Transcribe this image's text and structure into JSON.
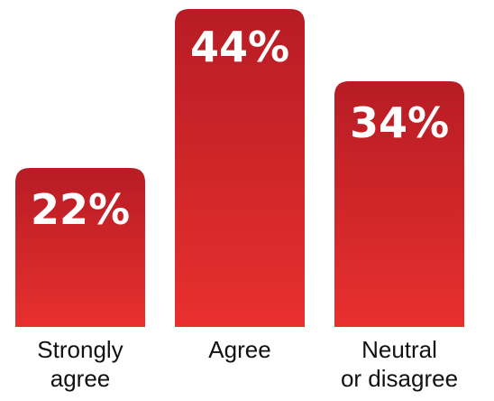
{
  "chart_data": {
    "type": "bar",
    "categories": [
      [
        "Strongly",
        "agree"
      ],
      [
        "Agree"
      ],
      [
        "Neutral",
        "or disagree"
      ]
    ],
    "values": [
      22,
      44,
      34
    ],
    "value_labels": [
      "22%",
      "44%",
      "34%"
    ],
    "value_suffix": "%",
    "ylim": [
      0,
      44
    ],
    "grid": false,
    "legend": "none",
    "colors": {
      "bar_top": "#b71c24",
      "bar_bottom": "#e8302e",
      "value_text": "#ffffff",
      "label_text": "#111111"
    }
  }
}
